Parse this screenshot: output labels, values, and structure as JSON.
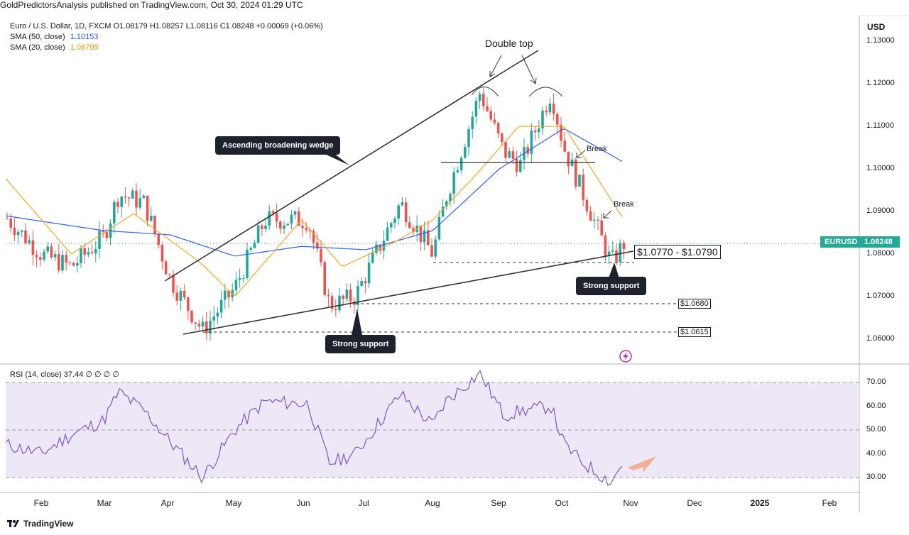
{
  "header": {
    "publisher_line": "GoldPredictorsAnalysis published on TradingView.com, Oct 30, 2024 01:29 UTC"
  },
  "legend": {
    "main": "Euro / U.S. Dollar, 1D, FXCM  O1.08179  H1.08257  L1.08116  C1.08248  +0.00069 (+0.06%)",
    "sma50_label": "SMA (50, close)",
    "sma50_value": "1.10153",
    "sma50_color": "#2962ff",
    "sma20_label": "SMA (20, close)",
    "sma20_value": "1.08795",
    "sma20_color": "#f5a623"
  },
  "price_axis": {
    "unit": "USD",
    "ticks": [
      "1.13000",
      "1.12000",
      "1.11000",
      "1.10000",
      "1.09000",
      "1.08000",
      "1.07000",
      "1.06000"
    ],
    "current_tag": {
      "symbol": "EURUSD",
      "price": "1.08248",
      "color": "#22ab94"
    }
  },
  "rsi": {
    "header": "RSI (14, close)  37.44  ∅  ∅  ∅  ∅",
    "ticks": [
      "70.00",
      "60.00",
      "50.00",
      "40.00",
      "30.00"
    ],
    "line_color": "#7e57c2",
    "band_color": "#ede7f6"
  },
  "time_axis": {
    "months": [
      "Feb",
      "Mar",
      "Apr",
      "May",
      "Jun",
      "Jul",
      "Aug",
      "Sep",
      "Oct",
      "Nov",
      "Dec",
      "2025",
      "Feb"
    ]
  },
  "annotations": {
    "double_top": "Double top",
    "wedge": "Ascending broadening wedge",
    "break_1": "Break",
    "break_2": "Break",
    "strong_support_1": "Strong support",
    "strong_support_2": "Strong support",
    "range_label": "$1.0770 - $1.0790",
    "level_1": "$1.0680",
    "level_2": "$1.0615"
  },
  "footer": {
    "brand": "TradingView"
  },
  "colors": {
    "up": "#26a69a",
    "down": "#ef5350",
    "wedge_line": "#333333"
  },
  "chart_data": {
    "type": "line",
    "title": "Euro / U.S. Dollar, 1D, FXCM",
    "ylabel": "USD",
    "ylim": [
      1.055,
      1.135
    ],
    "series": [
      {
        "name": "EURUSD close",
        "x": [
          "2024-01-15",
          "2024-02-01",
          "2024-02-15",
          "2024-03-01",
          "2024-03-08",
          "2024-03-20",
          "2024-04-01",
          "2024-04-16",
          "2024-05-01",
          "2024-05-15",
          "2024-06-04",
          "2024-06-14",
          "2024-06-26",
          "2024-07-17",
          "2024-08-01",
          "2024-08-07",
          "2024-08-23",
          "2024-09-03",
          "2024-09-11",
          "2024-09-25",
          "2024-10-01",
          "2024-10-10",
          "2024-10-23",
          "2024-10-29"
        ],
        "values": [
          1.089,
          1.08,
          1.077,
          1.084,
          1.094,
          1.092,
          1.074,
          1.062,
          1.072,
          1.088,
          1.088,
          1.068,
          1.07,
          1.092,
          1.08,
          1.093,
          1.118,
          1.104,
          1.101,
          1.118,
          1.105,
          1.094,
          1.078,
          1.0825
        ]
      },
      {
        "name": "SMA (50, close)",
        "x": [
          "2024-01-15",
          "2024-03-01",
          "2024-04-01",
          "2024-05-01",
          "2024-06-01",
          "2024-07-01",
          "2024-08-01",
          "2024-09-01",
          "2024-10-01",
          "2024-10-29"
        ],
        "values": [
          1.089,
          1.0855,
          1.0845,
          1.0795,
          1.0818,
          1.081,
          1.0855,
          1.1,
          1.1095,
          1.1015
        ]
      },
      {
        "name": "SMA (20, close)",
        "x": [
          "2024-01-15",
          "2024-02-15",
          "2024-03-15",
          "2024-04-15",
          "2024-05-01",
          "2024-06-01",
          "2024-06-20",
          "2024-07-15",
          "2024-08-01",
          "2024-08-20",
          "2024-09-10",
          "2024-10-01",
          "2024-10-29"
        ],
        "values": [
          1.098,
          1.08,
          1.0895,
          1.078,
          1.07,
          1.088,
          1.077,
          1.083,
          1.088,
          1.098,
          1.11,
          1.11,
          1.088
        ]
      },
      {
        "name": "RSI (14, close)",
        "x": [
          "2024-01-15",
          "2024-02-01",
          "2024-02-15",
          "2024-03-01",
          "2024-03-08",
          "2024-03-20",
          "2024-04-01",
          "2024-04-16",
          "2024-05-01",
          "2024-05-15",
          "2024-06-04",
          "2024-06-14",
          "2024-06-26",
          "2024-07-17",
          "2024-08-01",
          "2024-08-07",
          "2024-08-23",
          "2024-09-03",
          "2024-09-11",
          "2024-09-25",
          "2024-10-01",
          "2024-10-10",
          "2024-10-23",
          "2024-10-29"
        ],
        "values": [
          44,
          40,
          48,
          54,
          66,
          58,
          45,
          30,
          50,
          62,
          61,
          36,
          40,
          65,
          52,
          62,
          74,
          56,
          58,
          60,
          44,
          36,
          28,
          37.44
        ]
      }
    ],
    "horizontal_levels": [
      1.079,
      1.077,
      1.068,
      1.0615,
      1.1012
    ],
    "rsi_ylim": [
      25,
      75
    ],
    "rsi_levels": [
      70,
      50,
      30
    ],
    "grid": false,
    "legend_position": "top-left"
  }
}
